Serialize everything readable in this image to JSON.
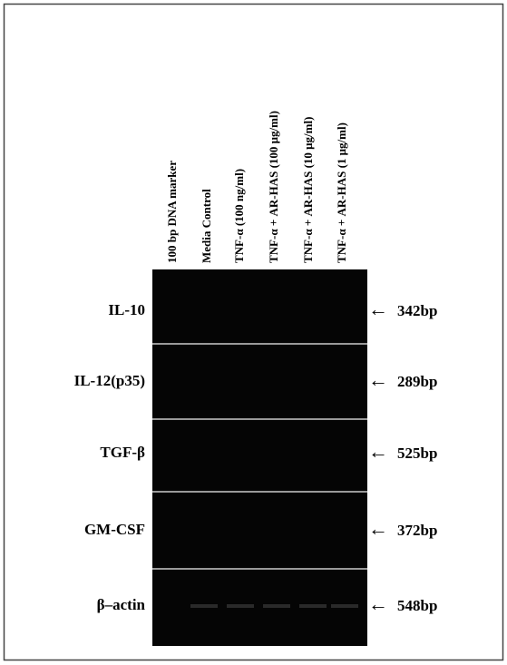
{
  "lanes": [
    "100 bp DNA marker",
    "Media Control",
    "TNF-α (100 ng/ml)",
    "TNF-α + AR-HAS (100 μg/ml)",
    "TNF-α + AR-HAS (10 μg/ml)",
    "TNF-α + AR-HAS (1 μg/ml)"
  ],
  "rows": [
    {
      "label": "IL-10",
      "size": "342bp"
    },
    {
      "label": "IL-12(p35)",
      "size": "289bp"
    },
    {
      "label": "TGF-β",
      "size": "525bp"
    },
    {
      "label": "GM-CSF",
      "size": "372bp"
    },
    {
      "label": "β–actin",
      "size": "548bp"
    }
  ],
  "arrow": "←"
}
